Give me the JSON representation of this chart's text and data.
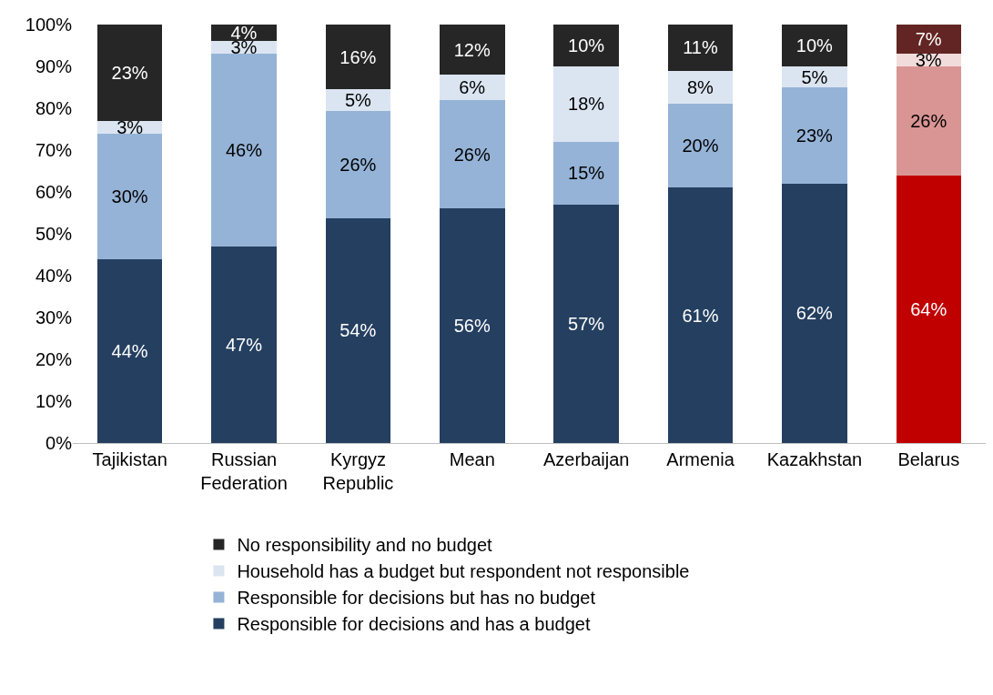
{
  "chart_data": {
    "type": "bar",
    "stacked": true,
    "categories": [
      "Tajikistan",
      "Russian Federation",
      "Kyrgyz Republic",
      "Mean",
      "Azerbaijan",
      "Armenia",
      "Kazakhstan",
      "Belarus"
    ],
    "series": [
      {
        "name": "Responsible for decisions and has a budget",
        "color": "#243f60",
        "colors": [
          null,
          null,
          null,
          null,
          null,
          null,
          null,
          "#c00000"
        ],
        "values": [
          44,
          47,
          53.7,
          56,
          57,
          61,
          62,
          64
        ],
        "value_labels": [
          "44%",
          "47%",
          "54%",
          "56%",
          "57%",
          "61%",
          "62%",
          "64%"
        ]
      },
      {
        "name": "Responsible for decisions but has no budget",
        "color": "#95b3d7",
        "colors": [
          null,
          null,
          null,
          null,
          null,
          null,
          null,
          "#d99594"
        ],
        "values": [
          30,
          46,
          25.7,
          26,
          15,
          20,
          23,
          26
        ],
        "value_labels": [
          "30%",
          "46%",
          "26%",
          "26%",
          "15%",
          "20%",
          "23%",
          "26%"
        ]
      },
      {
        "name": "Household has a budget but respondent not responsible",
        "color": "#dbe5f1",
        "colors": [
          null,
          null,
          null,
          null,
          null,
          null,
          null,
          "#f2dcdb"
        ],
        "values": [
          3,
          3,
          5.1,
          6,
          18,
          8,
          5,
          3
        ],
        "value_labels": [
          "3%",
          "3%",
          "5%",
          "6%",
          "18%",
          "8%",
          "5%",
          "3%"
        ]
      },
      {
        "name": "No responsibility and no budget",
        "color": "#262626",
        "colors": [
          null,
          null,
          null,
          null,
          null,
          null,
          null,
          "#632523"
        ],
        "values": [
          23,
          4,
          15.5,
          12,
          10,
          11,
          10,
          7
        ],
        "value_labels": [
          "23%",
          "4%",
          "16%",
          "12%",
          "10%",
          "11%",
          "10%",
          "7%"
        ]
      }
    ],
    "ylim": [
      0,
      100
    ],
    "yticks": [
      {
        "value": 0,
        "label": "0%"
      },
      {
        "value": 10,
        "label": "10%"
      },
      {
        "value": 20,
        "label": "20%"
      },
      {
        "value": 30,
        "label": "30%"
      },
      {
        "value": 40,
        "label": "40%"
      },
      {
        "value": 50,
        "label": "50%"
      },
      {
        "value": 60,
        "label": "60%"
      },
      {
        "value": 70,
        "label": "70%"
      },
      {
        "value": 80,
        "label": "80%"
      },
      {
        "value": 90,
        "label": "90%"
      },
      {
        "value": 100,
        "label": "100%"
      }
    ],
    "legend": "bottom"
  }
}
